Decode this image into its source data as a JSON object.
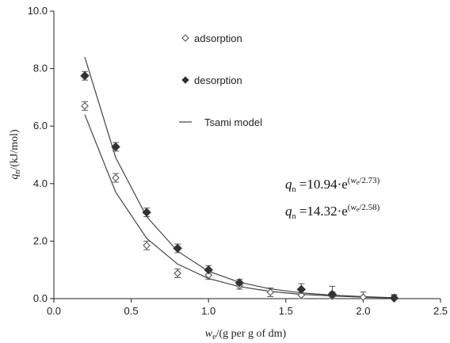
{
  "chart_data": {
    "type": "scatter",
    "title": "",
    "xlim": [
      0.0,
      2.5
    ],
    "ylim": [
      0.0,
      10.0
    ],
    "x_ticks": [
      "0.0",
      "0.5",
      "1.0",
      "1.5",
      "2.0",
      "2.5"
    ],
    "y_ticks": [
      "0.0",
      "2.0",
      "4.0",
      "6.0",
      "8.0",
      "10.0"
    ],
    "x_ticks_values": [
      0.0,
      0.5,
      1.0,
      1.5,
      2.0,
      2.5
    ],
    "y_ticks_values": [
      0.0,
      2.0,
      4.0,
      6.0,
      8.0,
      10.0
    ],
    "xlabel": {
      "main": "w",
      "sub": "e",
      "rest": "/(g per g of dm)"
    },
    "ylabel": {
      "main": "q",
      "sub": "n",
      "rest": "/(kJ/mol)"
    },
    "grid": false,
    "legend_position": "top-center",
    "series": [
      {
        "name": "adsorption",
        "marker": "open-diamond",
        "color": "#555555",
        "x": [
          0.2,
          0.4,
          0.6,
          0.8,
          1.0,
          1.2,
          1.4,
          1.6,
          1.8,
          2.0,
          2.2
        ],
        "y": [
          6.7,
          4.2,
          1.85,
          0.88,
          0.82,
          0.45,
          0.22,
          0.12,
          0.08,
          0.05,
          0.02
        ],
        "error": [
          0.15,
          0.15,
          0.15,
          0.15,
          0.15,
          0.12,
          0.15,
          0.2,
          0.15,
          0.18,
          0.12
        ]
      },
      {
        "name": "desorption",
        "marker": "filled-diamond",
        "color": "#333333",
        "x": [
          0.2,
          0.4,
          0.6,
          0.8,
          1.0,
          1.2,
          1.6,
          1.8,
          2.2
        ],
        "y": [
          7.75,
          5.28,
          3.0,
          1.75,
          1.0,
          0.55,
          0.32,
          0.15,
          0.02
        ],
        "error": [
          0.15,
          0.15,
          0.15,
          0.15,
          0.15,
          0.12,
          0.2,
          0.28,
          0.1
        ]
      },
      {
        "name": "Tsami model",
        "line": true,
        "color": "#444444",
        "x": [
          0.2,
          0.4,
          0.6,
          0.8,
          1.0,
          1.2,
          1.4,
          1.6,
          1.8,
          2.0,
          2.2
        ],
        "y_adsorption_fit": [
          6.4,
          3.7,
          2.1,
          1.2,
          0.7,
          0.42,
          0.25,
          0.15,
          0.09,
          0.05,
          0.02
        ],
        "y_desorption_fit": [
          8.4,
          4.9,
          2.85,
          1.65,
          0.95,
          0.57,
          0.34,
          0.2,
          0.12,
          0.07,
          0.03
        ]
      }
    ],
    "annotations": [
      {
        "lhs": "q",
        "lhs_sub": "n",
        "eq": " =10.94·e",
        "exp_open": "(",
        "exp_w": "w",
        "exp_sub": "e",
        "exp_rest": "/2.73)"
      },
      {
        "lhs": "q",
        "lhs_sub": "n",
        "eq": " =14.32·e",
        "exp_open": "(",
        "exp_w": "w",
        "exp_sub": "e",
        "exp_rest": "/2.58)"
      }
    ]
  }
}
